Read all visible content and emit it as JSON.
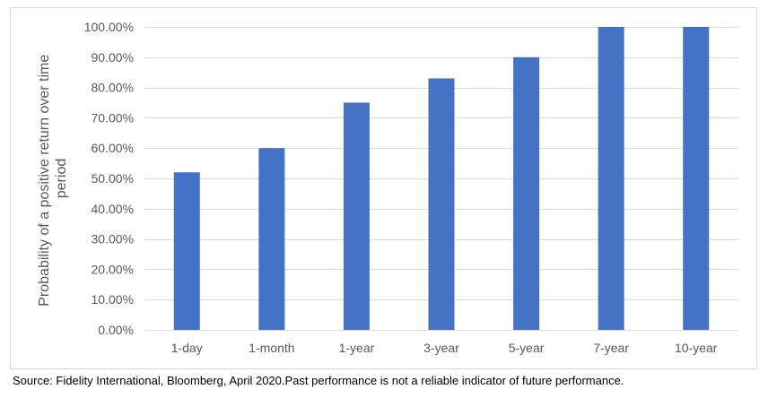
{
  "chart_data": {
    "type": "bar",
    "title": "",
    "xlabel": "",
    "ylabel_lines": [
      "Probability of a positive return over time",
      "period"
    ],
    "categories": [
      "1-day",
      "1-month",
      "1-year",
      "3-year",
      "5-year",
      "7-year",
      "10-year"
    ],
    "values": [
      52,
      60,
      75,
      83,
      90,
      100,
      100
    ],
    "ylim": [
      0,
      100
    ],
    "yticks": [
      0,
      10,
      20,
      30,
      40,
      50,
      60,
      70,
      80,
      90,
      100
    ],
    "ytick_labels": [
      "0.00%",
      "10.00%",
      "20.00%",
      "30.00%",
      "40.00%",
      "50.00%",
      "60.00%",
      "70.00%",
      "80.00%",
      "90.00%",
      "100.00%"
    ],
    "grid": true,
    "legend": "none",
    "bar_color": "#4472c4",
    "grid_color": "#d9d9d9"
  },
  "source_note": "Source: Fidelity International, Bloomberg, April 2020.Past performance is not a reliable indicator of future performance."
}
